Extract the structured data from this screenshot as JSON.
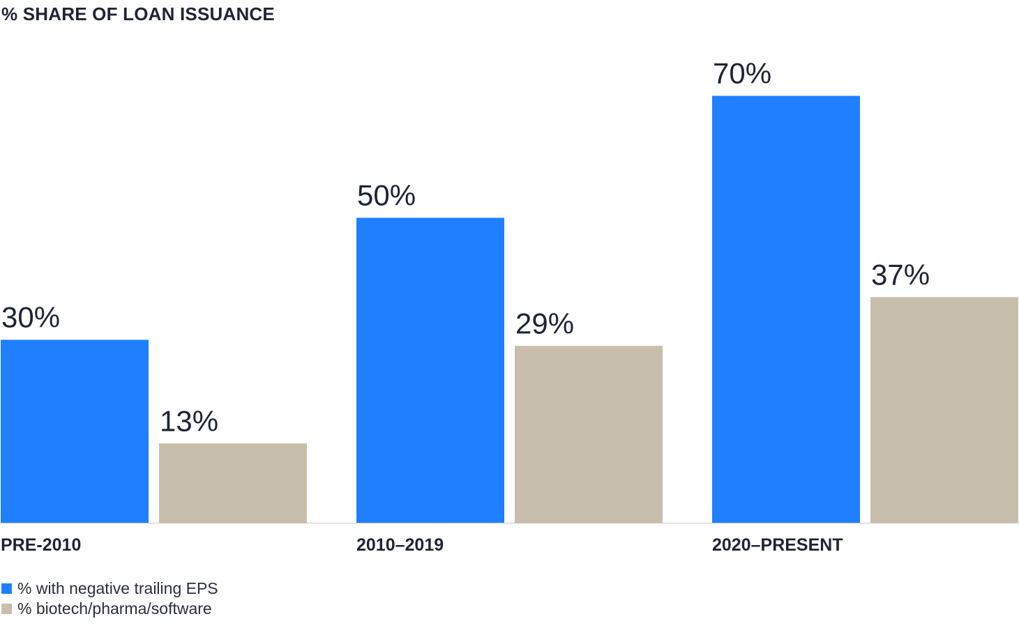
{
  "chart_data": {
    "type": "bar",
    "title": "% SHARE OF LOAN ISSUANCE",
    "categories": [
      "PRE-2010",
      "2010–2019",
      "2020–PRESENT"
    ],
    "series": [
      {
        "name": "% with negative trailing EPS",
        "values": [
          30,
          50,
          70
        ],
        "labels": [
          "30%",
          "50%",
          "70%"
        ],
        "color": "#1f7fff"
      },
      {
        "name": "% biotech/pharma/software",
        "values": [
          13,
          29,
          37
        ],
        "labels": [
          "13%",
          "29%",
          "37%"
        ],
        "color": "#c8beac"
      }
    ],
    "ylim": [
      0,
      70
    ],
    "xlabel": "",
    "ylabel": "",
    "grid": false,
    "legend_position": "bottom-left"
  }
}
